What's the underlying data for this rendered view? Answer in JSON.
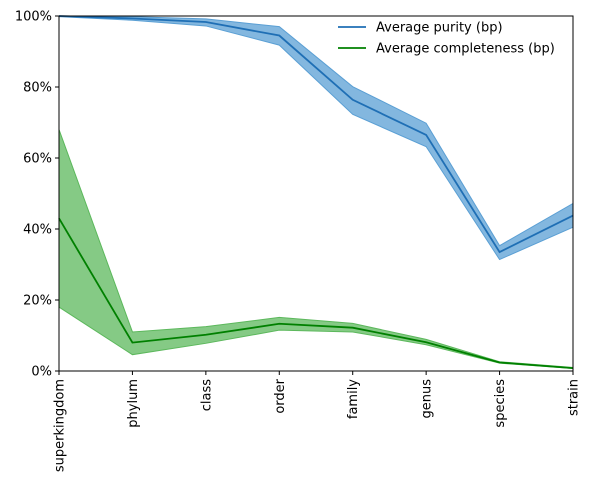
{
  "chart_data": {
    "type": "line",
    "categories": [
      "superkingdom",
      "phylum",
      "class",
      "order",
      "family",
      "genus",
      "species",
      "strain"
    ],
    "ylim": [
      0,
      100
    ],
    "yticks": [
      0,
      20,
      40,
      60,
      80,
      100
    ],
    "ytick_labels": [
      "0%",
      "20%",
      "40%",
      "60%",
      "80%",
      "100%"
    ],
    "grid": false,
    "legend_position": "top-right",
    "series": [
      {
        "name": "Average purity (bp)",
        "color": "#1f6fb5",
        "band_color": "#5a9fd4",
        "values": [
          100,
          99.3,
          98.3,
          94.5,
          76.4,
          66.5,
          33.5,
          43.8
        ],
        "lower": [
          99.8,
          98.8,
          97.2,
          91.8,
          72.3,
          63.2,
          31.4,
          40.5
        ],
        "upper": [
          100,
          99.8,
          99.2,
          97.0,
          80.1,
          69.8,
          35.3,
          47.2
        ]
      },
      {
        "name": "Average completeness (bp)",
        "color": "#008000",
        "band_color": "#5cb85c",
        "values": [
          43.0,
          8.0,
          10.2,
          13.3,
          12.2,
          8.1,
          2.4,
          0.8
        ],
        "lower": [
          18.0,
          4.6,
          7.8,
          11.5,
          11.0,
          7.4,
          2.2,
          0.7
        ],
        "upper": [
          68.0,
          11.0,
          12.5,
          15.1,
          13.4,
          8.9,
          2.6,
          1.0
        ]
      }
    ]
  }
}
